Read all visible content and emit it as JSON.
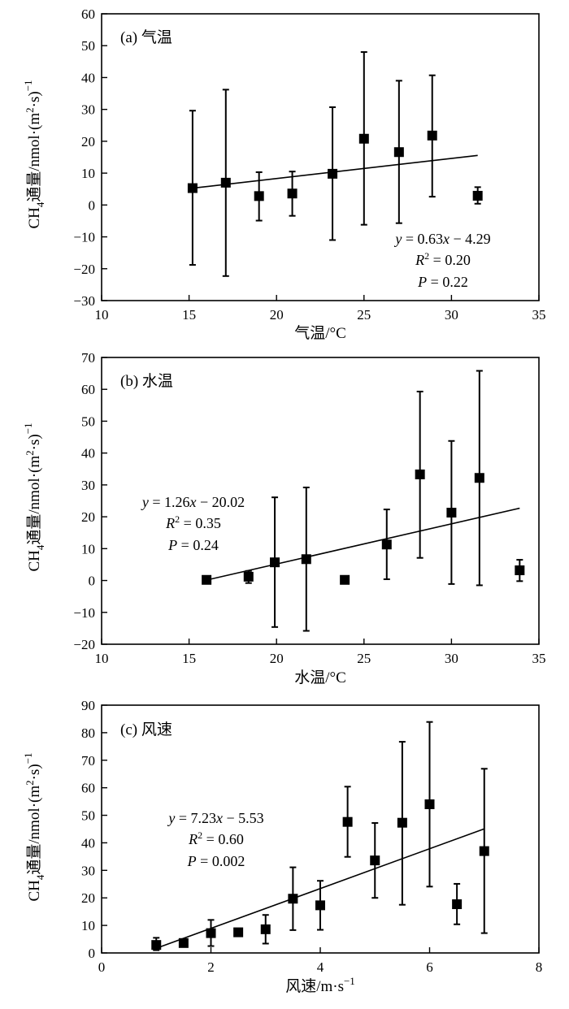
{
  "chart_data": [
    {
      "type": "scatter",
      "panel_label": "(a) 气温",
      "xlabel": "气温/°C",
      "ylabel": [
        "CH",
        "4",
        "通量/nmol·(m",
        "2",
        "·s)",
        "−1"
      ],
      "xlim": [
        10,
        35
      ],
      "ylim": [
        -30,
        60
      ],
      "xticks": [
        10,
        15,
        20,
        25,
        30,
        35
      ],
      "yticks": [
        -30,
        -20,
        -10,
        0,
        10,
        20,
        30,
        40,
        50,
        60
      ],
      "points": [
        {
          "x": 15.2,
          "y": 5.3,
          "err_low": -18.8,
          "err_high": 29.6
        },
        {
          "x": 17.1,
          "y": 7.0,
          "err_low": -22.3,
          "err_high": 36.2
        },
        {
          "x": 19.0,
          "y": 2.8,
          "err_low": -4.9,
          "err_high": 10.3
        },
        {
          "x": 20.9,
          "y": 3.6,
          "err_low": -3.4,
          "err_high": 10.5
        },
        {
          "x": 23.2,
          "y": 9.8,
          "err_low": -11.0,
          "err_high": 30.7
        },
        {
          "x": 25.0,
          "y": 20.8,
          "err_low": -6.2,
          "err_high": 48.0
        },
        {
          "x": 27.0,
          "y": 16.6,
          "err_low": -5.7,
          "err_high": 39.0
        },
        {
          "x": 28.9,
          "y": 21.8,
          "err_low": 2.6,
          "err_high": 40.7
        },
        {
          "x": 31.5,
          "y": 2.9,
          "err_low": 0.4,
          "err_high": 5.6
        }
      ],
      "fit": {
        "x": [
          15.0,
          31.5
        ],
        "slope": 0.63,
        "intercept": -4.29
      },
      "annotations": {
        "eq": "y = 0.63x − 4.29",
        "r2": "R2 = 0.20",
        "p": "P = 0.22"
      }
    },
    {
      "type": "scatter",
      "panel_label": "(b) 水温",
      "xlabel": "水温/°C",
      "ylabel": [
        "CH",
        "4",
        "通量/nmol·(m",
        "2",
        "·s)",
        "−1"
      ],
      "xlim": [
        10,
        35
      ],
      "ylim": [
        -20,
        70
      ],
      "xticks": [
        10,
        15,
        20,
        25,
        30,
        35
      ],
      "yticks": [
        -20,
        -10,
        0,
        10,
        20,
        30,
        40,
        50,
        60,
        70
      ],
      "points": [
        {
          "x": 16.0,
          "y": 0.2,
          "err_low": 0.2,
          "err_high": 0.2
        },
        {
          "x": 18.4,
          "y": 1.2,
          "err_low": -0.8,
          "err_high": 3.0
        },
        {
          "x": 19.9,
          "y": 5.7,
          "err_low": -14.6,
          "err_high": 26.1
        },
        {
          "x": 21.7,
          "y": 6.7,
          "err_low": -15.8,
          "err_high": 29.2
        },
        {
          "x": 23.9,
          "y": 0.2,
          "err_low": 0.2,
          "err_high": 0.2
        },
        {
          "x": 26.3,
          "y": 11.3,
          "err_low": 0.4,
          "err_high": 22.3
        },
        {
          "x": 28.2,
          "y": 33.3,
          "err_low": 7.1,
          "err_high": 59.3
        },
        {
          "x": 30.0,
          "y": 21.3,
          "err_low": -1.1,
          "err_high": 43.8
        },
        {
          "x": 31.6,
          "y": 32.2,
          "err_low": -1.5,
          "err_high": 65.8
        },
        {
          "x": 33.9,
          "y": 3.2,
          "err_low": -0.2,
          "err_high": 6.5
        }
      ],
      "fit": {
        "x": [
          16.0,
          33.9
        ],
        "slope": 1.26,
        "intercept": -20.02
      },
      "annotations": {
        "eq": "y = 1.26x − 20.02",
        "r2": "R2 = 0.35",
        "p": "P = 0.24"
      }
    },
    {
      "type": "scatter",
      "panel_label": "(c) 风速",
      "xlabel": "风速/m·s−1",
      "ylabel": [
        "CH",
        "4",
        "通量/nmol·(m",
        "2",
        "·s)",
        "−1"
      ],
      "xlim": [
        0,
        8
      ],
      "ylim": [
        0,
        90
      ],
      "xticks": [
        0,
        2,
        4,
        6,
        8
      ],
      "yticks": [
        0,
        10,
        20,
        30,
        40,
        50,
        60,
        70,
        80,
        90
      ],
      "points": [
        {
          "x": 1.0,
          "y": 2.9,
          "err_low": 1.0,
          "err_high": 5.5
        },
        {
          "x": 1.5,
          "y": 3.6,
          "err_low": 2.3,
          "err_high": 5.0
        },
        {
          "x": 2.0,
          "y": 7.2,
          "err_low": 2.5,
          "err_high": 12.0
        },
        {
          "x": 2.5,
          "y": 7.5,
          "err_low": 7.5,
          "err_high": 7.5
        },
        {
          "x": 3.0,
          "y": 8.6,
          "err_low": 3.4,
          "err_high": 13.8
        },
        {
          "x": 3.5,
          "y": 19.7,
          "err_low": 8.3,
          "err_high": 31.1
        },
        {
          "x": 4.0,
          "y": 17.3,
          "err_low": 8.4,
          "err_high": 26.2
        },
        {
          "x": 4.5,
          "y": 47.6,
          "err_low": 34.9,
          "err_high": 60.4
        },
        {
          "x": 5.0,
          "y": 33.6,
          "err_low": 20.0,
          "err_high": 47.2
        },
        {
          "x": 5.5,
          "y": 47.3,
          "err_low": 17.5,
          "err_high": 76.7
        },
        {
          "x": 6.0,
          "y": 54.0,
          "err_low": 24.1,
          "err_high": 83.9
        },
        {
          "x": 6.5,
          "y": 17.7,
          "err_low": 10.4,
          "err_high": 25.1
        },
        {
          "x": 7.0,
          "y": 37.0,
          "err_low": 7.2,
          "err_high": 66.9
        }
      ],
      "fit": {
        "x": [
          1.0,
          7.0
        ],
        "slope": 7.23,
        "intercept": -5.53
      },
      "annotations": {
        "eq": "y = 7.23x − 5.53",
        "r2": "R2 = 0.60",
        "p": "P = 0.002"
      }
    }
  ]
}
